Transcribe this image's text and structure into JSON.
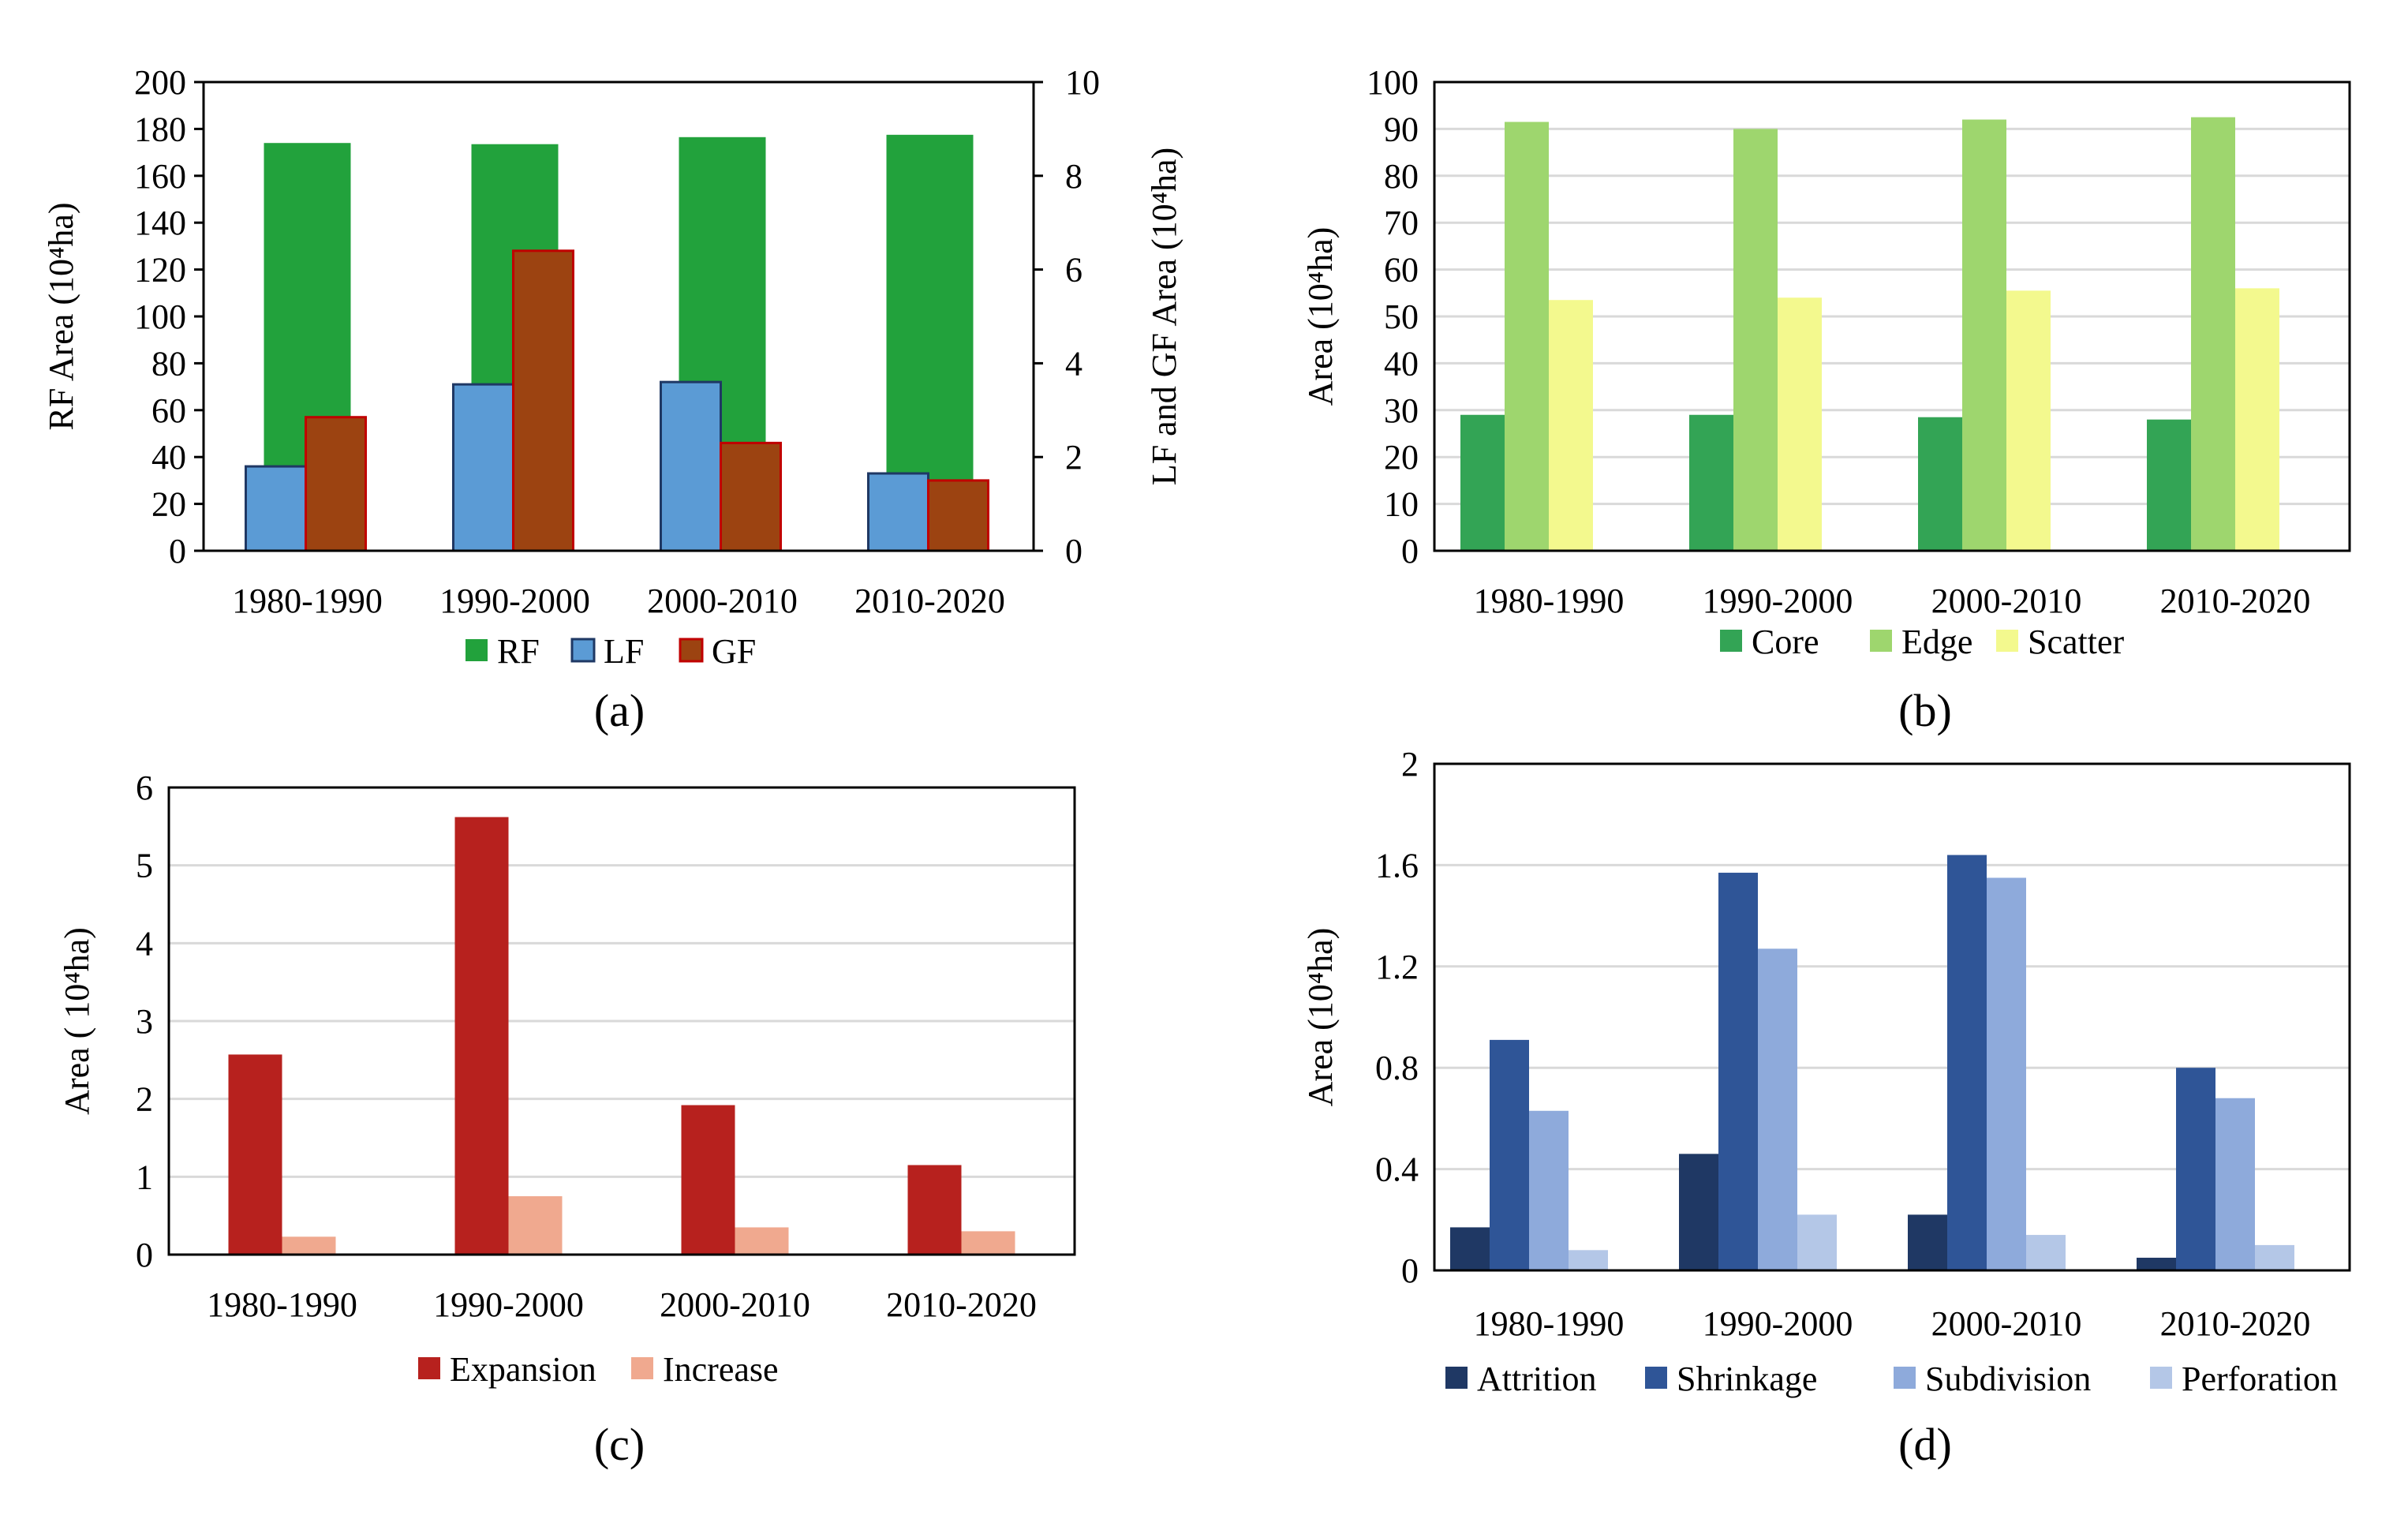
{
  "chart_data": [
    {
      "id": "a",
      "type": "bar",
      "panel_label": "(a)",
      "categories": [
        "1980-1990",
        "1990-2000",
        "2000-2010",
        "2010-2020"
      ],
      "ylabel": "RF Area (10⁴ha)",
      "y2label": "LF and GF Area (10⁴ha)",
      "ylim": [
        0,
        200
      ],
      "yticks": [
        0,
        20,
        40,
        60,
        80,
        100,
        120,
        140,
        160,
        180,
        200
      ],
      "y2lim": [
        0,
        10
      ],
      "y2ticks": [
        0,
        2,
        4,
        6,
        8,
        10
      ],
      "grid": false,
      "legend_position": "bottom",
      "series": [
        {
          "name": "RF",
          "axis": "left",
          "color": "#22a23c",
          "values": [
            174,
            173.5,
            176.5,
            177.5
          ]
        },
        {
          "name": "LF",
          "axis": "right",
          "color": "#5b9bd5",
          "values": [
            1.8,
            3.55,
            3.6,
            1.65
          ]
        },
        {
          "name": "GF",
          "axis": "right",
          "color": "#9c4311",
          "values": [
            2.85,
            6.4,
            2.3,
            1.5
          ]
        }
      ]
    },
    {
      "id": "b",
      "type": "bar",
      "panel_label": "(b)",
      "categories": [
        "1980-1990",
        "1990-2000",
        "2000-2010",
        "2010-2020"
      ],
      "ylabel": "Area (10⁴ha)",
      "ylim": [
        0,
        100
      ],
      "yticks": [
        0,
        10,
        20,
        30,
        40,
        50,
        60,
        70,
        80,
        90,
        100
      ],
      "grid": true,
      "legend_position": "bottom",
      "series": [
        {
          "name": "Core",
          "color": "#33a455",
          "values": [
            29,
            29,
            28.5,
            28
          ]
        },
        {
          "name": "Edge",
          "color": "#9ed66e",
          "values": [
            91.5,
            90,
            92,
            92.5
          ]
        },
        {
          "name": "Scatter",
          "color": "#f3f98e",
          "values": [
            53.5,
            54,
            55.5,
            56
          ]
        }
      ]
    },
    {
      "id": "c",
      "type": "bar",
      "panel_label": "(c)",
      "categories": [
        "1980-1990",
        "1990-2000",
        "2000-2010",
        "2010-2020"
      ],
      "ylabel": "Area ( 10⁴ha)",
      "ylim": [
        0,
        6
      ],
      "yticks": [
        0,
        1,
        2,
        3,
        4,
        5,
        6
      ],
      "grid": true,
      "legend_position": "bottom",
      "series": [
        {
          "name": "Expansion",
          "color": "#b7211e",
          "values": [
            2.57,
            5.62,
            1.92,
            1.15
          ]
        },
        {
          "name": "Increase",
          "color": "#f0a98f",
          "values": [
            0.23,
            0.75,
            0.35,
            0.3
          ]
        }
      ]
    },
    {
      "id": "d",
      "type": "bar",
      "panel_label": "(d)",
      "categories": [
        "1980-1990",
        "1990-2000",
        "2000-2010",
        "2010-2020"
      ],
      "ylabel": "Area (10⁴ha)",
      "ylim": [
        0,
        2
      ],
      "yticks": [
        "0",
        "0.4",
        "0.8",
        "1.2",
        "1.6",
        "2"
      ],
      "grid": true,
      "legend_position": "bottom",
      "series": [
        {
          "name": "Attrition",
          "color": "#1f3864",
          "values": [
            0.17,
            0.46,
            0.22,
            0.05
          ]
        },
        {
          "name": "Shrinkage",
          "color": "#2f5597",
          "values": [
            0.91,
            1.57,
            1.64,
            0.8
          ]
        },
        {
          "name": "Subdivision",
          "color": "#8eaadb",
          "values": [
            0.63,
            1.27,
            1.55,
            0.68
          ]
        },
        {
          "name": "Perforation",
          "color": "#b4c7e7",
          "values": [
            0.08,
            0.22,
            0.14,
            0.1
          ]
        }
      ]
    }
  ]
}
